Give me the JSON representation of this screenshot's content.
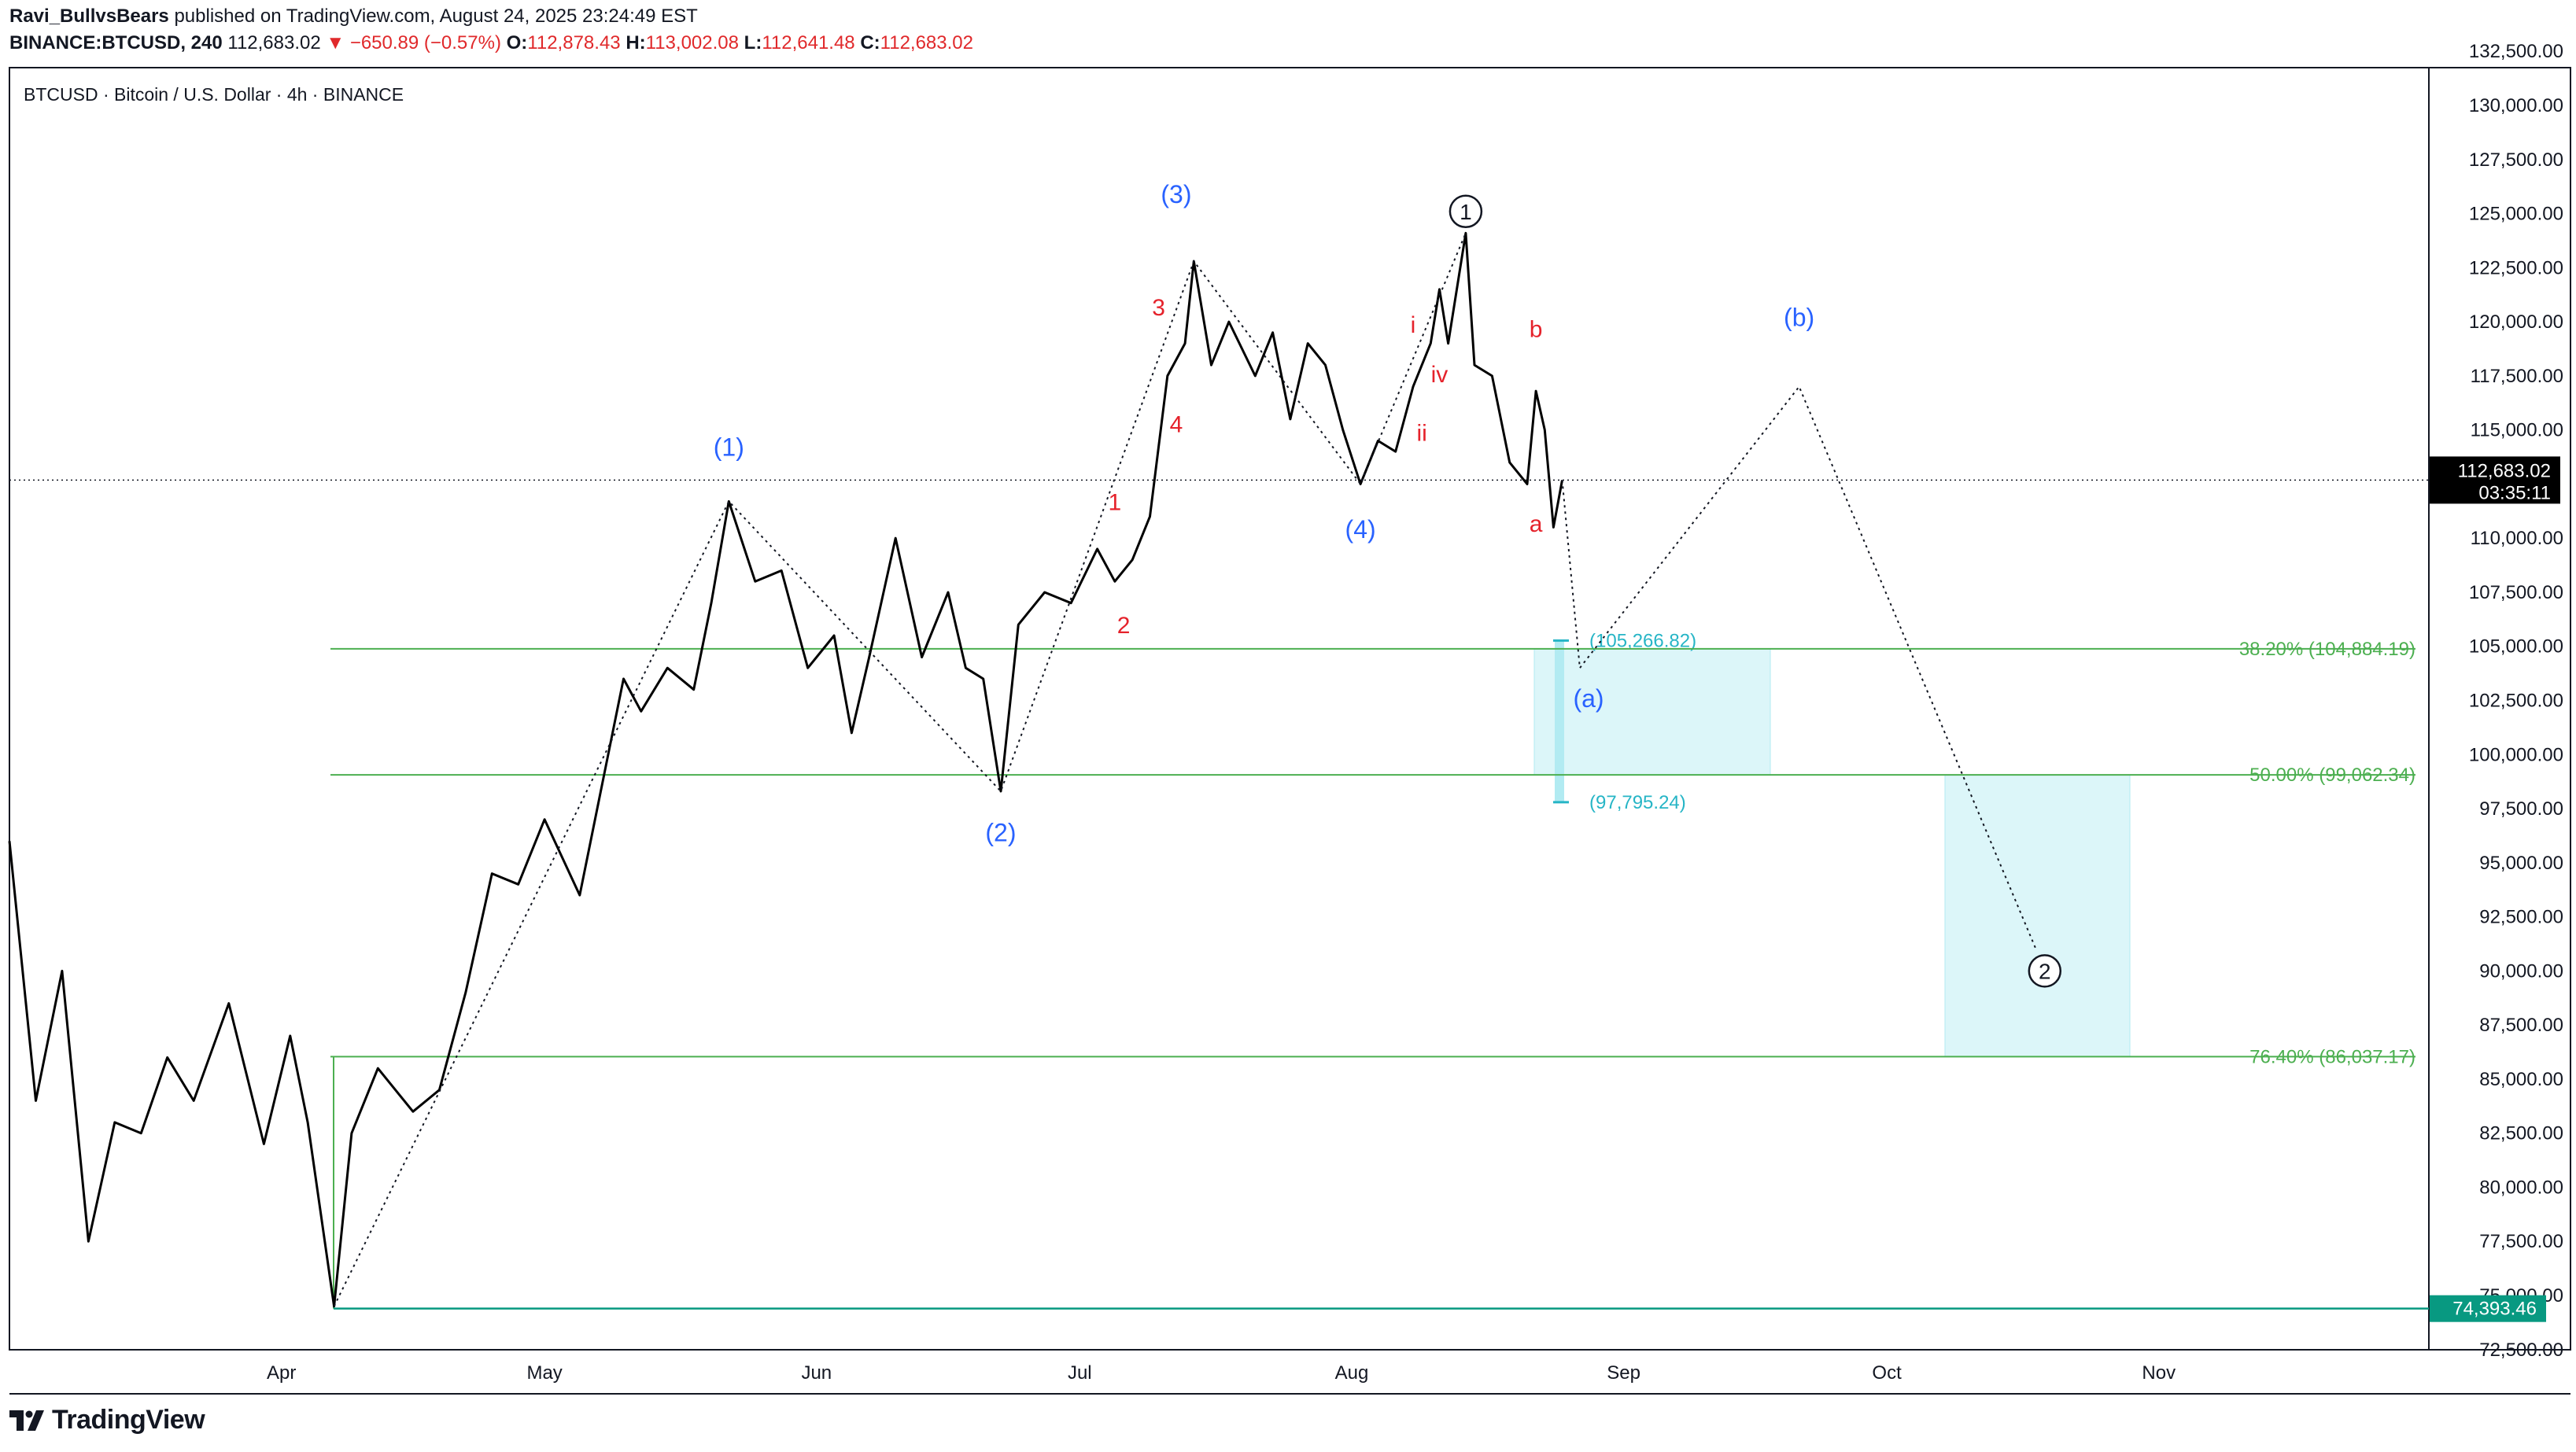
{
  "header": {
    "author": "Ravi_BullvsBears",
    "published_text": "published on TradingView.com, August 24, 2025 23:24:49 EST",
    "symbol_interval": "BINANCE:BTCUSD, 240",
    "last_price": "112,683.02",
    "change": "▼ −650.89 (−0.57%)",
    "o_label": "O:",
    "o_value": "112,878.43",
    "h_label": "H:",
    "h_value": "113,002.08",
    "l_label": "L:",
    "l_value": "112,641.48",
    "c_label": "C:",
    "c_value": "112,683.02"
  },
  "chart_title": "BTCUSD · Bitcoin / U.S. Dollar · 4h · BINANCE",
  "footer": {
    "brand": "TradingView",
    "logo_icon": "tradingview-logo-icon"
  },
  "colors": {
    "price_line": "#000000",
    "fib_line": "#4caf50",
    "fib_text": "#4caf50",
    "zone_fill": "#b2ebf2",
    "zone_text": "#26b5c6",
    "wave_blue": "#2962ff",
    "wave_red": "#e5222b",
    "last_price_bg": "#000000",
    "low_price_bg": "#089981"
  },
  "chart_data": {
    "type": "line",
    "title": "BTCUSD · Bitcoin / U.S. Dollar · 4h · BINANCE",
    "xlabel": "",
    "ylabel": "",
    "ylim": [
      71500,
      133000
    ],
    "x_ticks": [
      "Apr",
      "May",
      "Jun",
      "Jul",
      "Aug",
      "Sep",
      "Oct",
      "Nov"
    ],
    "y_ticks": [
      "132,500.00",
      "130,000.00",
      "127,500.00",
      "125,000.00",
      "122,500.00",
      "120,000.00",
      "117,500.00",
      "115,000.00",
      "110,000.00",
      "107,500.00",
      "105,000.00",
      "102,500.00",
      "100,000.00",
      "97,500.00",
      "95,000.00",
      "92,500.00",
      "90,000.00",
      "87,500.00",
      "85,000.00",
      "82,500.00",
      "80,000.00",
      "77,500.00",
      "75,000.00",
      "72,500.00"
    ],
    "series": [
      {
        "points": [
          [
            "2025-03-01",
            96000
          ],
          [
            "2025-03-04",
            84000
          ],
          [
            "2025-03-07",
            90000
          ],
          [
            "2025-03-10",
            77500
          ],
          [
            "2025-03-13",
            83000
          ],
          [
            "2025-03-16",
            82500
          ],
          [
            "2025-03-19",
            86000
          ],
          [
            "2025-03-22",
            84000
          ],
          [
            "2025-03-26",
            88500
          ],
          [
            "2025-03-30",
            82000
          ],
          [
            "2025-04-02",
            87000
          ],
          [
            "2025-04-04",
            83000
          ],
          [
            "2025-04-07",
            74500
          ],
          [
            "2025-04-09",
            82500
          ],
          [
            "2025-04-12",
            85500
          ],
          [
            "2025-04-16",
            83500
          ],
          [
            "2025-04-19",
            84500
          ],
          [
            "2025-04-22",
            89000
          ],
          [
            "2025-04-25",
            94500
          ],
          [
            "2025-04-28",
            94000
          ],
          [
            "2025-05-01",
            97000
          ],
          [
            "2025-05-05",
            93500
          ],
          [
            "2025-05-08",
            99500
          ],
          [
            "2025-05-10",
            103500
          ],
          [
            "2025-05-12",
            102000
          ],
          [
            "2025-05-15",
            104000
          ],
          [
            "2025-05-18",
            103000
          ],
          [
            "2025-05-20",
            107000
          ],
          [
            "2025-05-22",
            111700
          ],
          [
            "2025-05-25",
            108000
          ],
          [
            "2025-05-28",
            108500
          ],
          [
            "2025-05-31",
            104000
          ],
          [
            "2025-06-03",
            105500
          ],
          [
            "2025-06-05",
            101000
          ],
          [
            "2025-06-07",
            104500
          ],
          [
            "2025-06-10",
            110000
          ],
          [
            "2025-06-13",
            104500
          ],
          [
            "2025-06-16",
            107500
          ],
          [
            "2025-06-18",
            104000
          ],
          [
            "2025-06-20",
            103500
          ],
          [
            "2025-06-22",
            98300
          ],
          [
            "2025-06-24",
            106000
          ],
          [
            "2025-06-27",
            107500
          ],
          [
            "2025-06-30",
            107000
          ],
          [
            "2025-07-03",
            109500
          ],
          [
            "2025-07-05",
            108000
          ],
          [
            "2025-07-07",
            109000
          ],
          [
            "2025-07-09",
            111000
          ],
          [
            "2025-07-11",
            117500
          ],
          [
            "2025-07-13",
            119000
          ],
          [
            "2025-07-14",
            122800
          ],
          [
            "2025-07-16",
            118000
          ],
          [
            "2025-07-18",
            120000
          ],
          [
            "2025-07-21",
            117500
          ],
          [
            "2025-07-23",
            119500
          ],
          [
            "2025-07-25",
            115500
          ],
          [
            "2025-07-27",
            119000
          ],
          [
            "2025-07-29",
            118000
          ],
          [
            "2025-07-31",
            115000
          ],
          [
            "2025-08-02",
            112500
          ],
          [
            "2025-08-04",
            114500
          ],
          [
            "2025-08-06",
            114000
          ],
          [
            "2025-08-08",
            117000
          ],
          [
            "2025-08-10",
            119000
          ],
          [
            "2025-08-11",
            121500
          ],
          [
            "2025-08-12",
            119000
          ],
          [
            "2025-08-14",
            124100
          ],
          [
            "2025-08-15",
            118000
          ],
          [
            "2025-08-17",
            117500
          ],
          [
            "2025-08-19",
            113500
          ],
          [
            "2025-08-21",
            112500
          ],
          [
            "2025-08-22",
            116800
          ],
          [
            "2025-08-23",
            115000
          ],
          [
            "2025-08-24",
            110500
          ],
          [
            "2025-08-25",
            112683
          ]
        ]
      }
    ],
    "projection": [
      [
        "2025-08-25",
        112683
      ],
      [
        "2025-08-27",
        104000
      ],
      [
        "2025-09-21",
        117000
      ],
      [
        "2025-10-18",
        91000
      ]
    ],
    "wave_path": [
      [
        "2025-04-07",
        74500
      ],
      [
        "2025-05-22",
        111700
      ],
      [
        "2025-06-22",
        98300
      ],
      [
        "2025-07-14",
        122800
      ],
      [
        "2025-08-02",
        112500
      ],
      [
        "2025-08-14",
        124100
      ]
    ],
    "fib_levels": [
      {
        "label": "38.20% (104,884.19)",
        "value": 104884.19
      },
      {
        "label": "50.00% (99,062.34)",
        "value": 99062.34
      },
      {
        "label": "76.40% (86,037.17)",
        "value": 86037.17
      }
    ],
    "zone_a": {
      "high": 104884.19,
      "low": 99062.34,
      "label_high": "(105,266.82)",
      "label_low": "(97,795.24)",
      "value_high": 105266.82,
      "value_low": 97795.24
    },
    "zone_b": {
      "high": 99062.34,
      "low": 86037.17
    },
    "last_price": {
      "value": 112683.02,
      "label": "112,683.02",
      "countdown": "03:35:11"
    },
    "low_price": {
      "value": 74393.46,
      "label": "74,393.46"
    },
    "wave_labels": [
      {
        "text": "(1)",
        "date": "2025-05-22",
        "price": 113800,
        "color": "blue"
      },
      {
        "text": "(2)",
        "date": "2025-06-22",
        "price": 96000,
        "color": "blue"
      },
      {
        "text": "(3)",
        "date": "2025-07-12",
        "price": 125500,
        "color": "blue"
      },
      {
        "text": "(4)",
        "date": "2025-08-02",
        "price": 110000,
        "color": "blue"
      },
      {
        "text": "(a)",
        "date": "2025-08-28",
        "price": 102200,
        "color": "blue"
      },
      {
        "text": "(b)",
        "date": "2025-09-21",
        "price": 119800,
        "color": "blue"
      },
      {
        "text": "1",
        "date": "2025-07-05",
        "price": 111300,
        "color": "red"
      },
      {
        "text": "2",
        "date": "2025-07-06",
        "price": 105600,
        "color": "red"
      },
      {
        "text": "3",
        "date": "2025-07-10",
        "price": 120300,
        "color": "red"
      },
      {
        "text": "4",
        "date": "2025-07-12",
        "price": 114900,
        "color": "red"
      },
      {
        "text": "i",
        "date": "2025-08-08",
        "price": 119500,
        "color": "red"
      },
      {
        "text": "ii",
        "date": "2025-08-09",
        "price": 114500,
        "color": "red"
      },
      {
        "text": "iv",
        "date": "2025-08-11",
        "price": 117200,
        "color": "red"
      },
      {
        "text": "b",
        "date": "2025-08-22",
        "price": 119300,
        "color": "red"
      },
      {
        "text": "a",
        "date": "2025-08-22",
        "price": 110300,
        "color": "red"
      }
    ],
    "circle_labels": [
      {
        "text": "1",
        "date": "2025-08-14",
        "price": 125100
      },
      {
        "text": "2",
        "date": "2025-10-19",
        "price": 90000
      }
    ],
    "grid": false,
    "legend": "none"
  }
}
